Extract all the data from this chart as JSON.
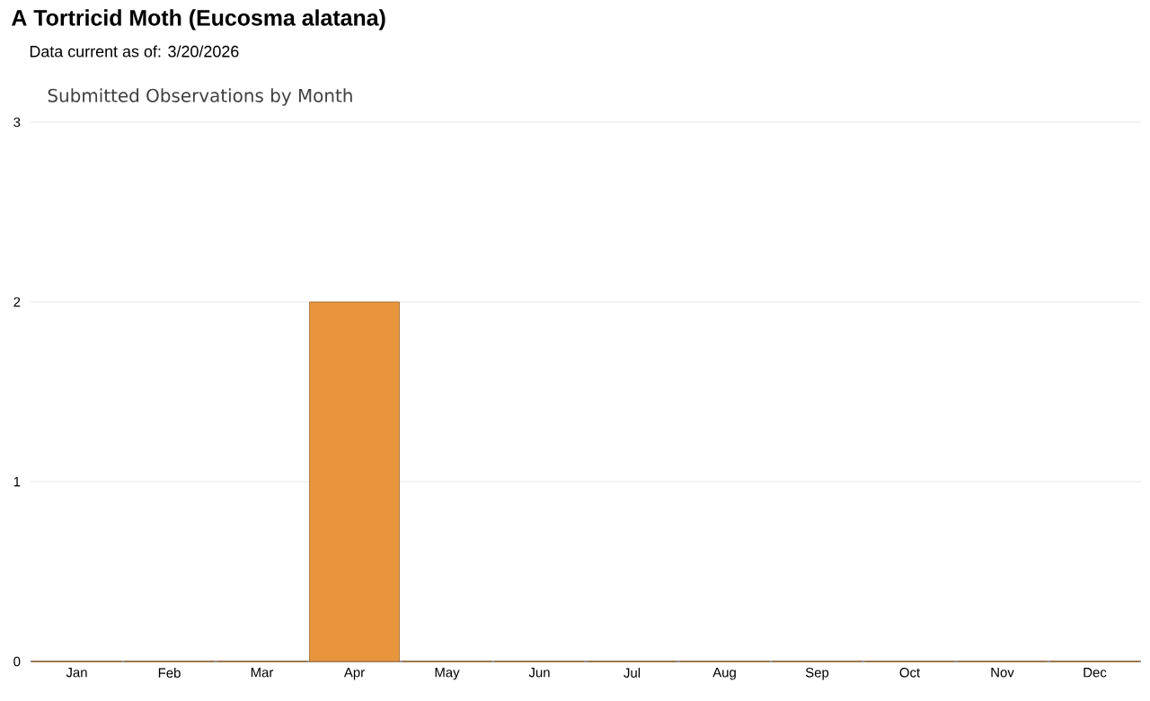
{
  "chart_data": {
    "type": "bar",
    "title": "A Tortricid Moth   (Eucosma alatana)",
    "subtitle": "Data current as of: 3/20/2026",
    "annotations": [
      "Submitted Observations by Month"
    ],
    "categories": [
      "Jan",
      "Feb",
      "Mar",
      "Apr",
      "May",
      "Jun",
      "Jul",
      "Aug",
      "Sep",
      "Oct",
      "Nov",
      "Dec"
    ],
    "values": [
      0,
      0,
      0,
      2,
      0,
      0,
      0,
      0,
      0,
      0,
      0,
      0
    ],
    "color": "#e8953e",
    "ylim": [
      0,
      3
    ],
    "yticks": [
      0,
      1,
      2,
      3
    ],
    "grid": "y"
  }
}
